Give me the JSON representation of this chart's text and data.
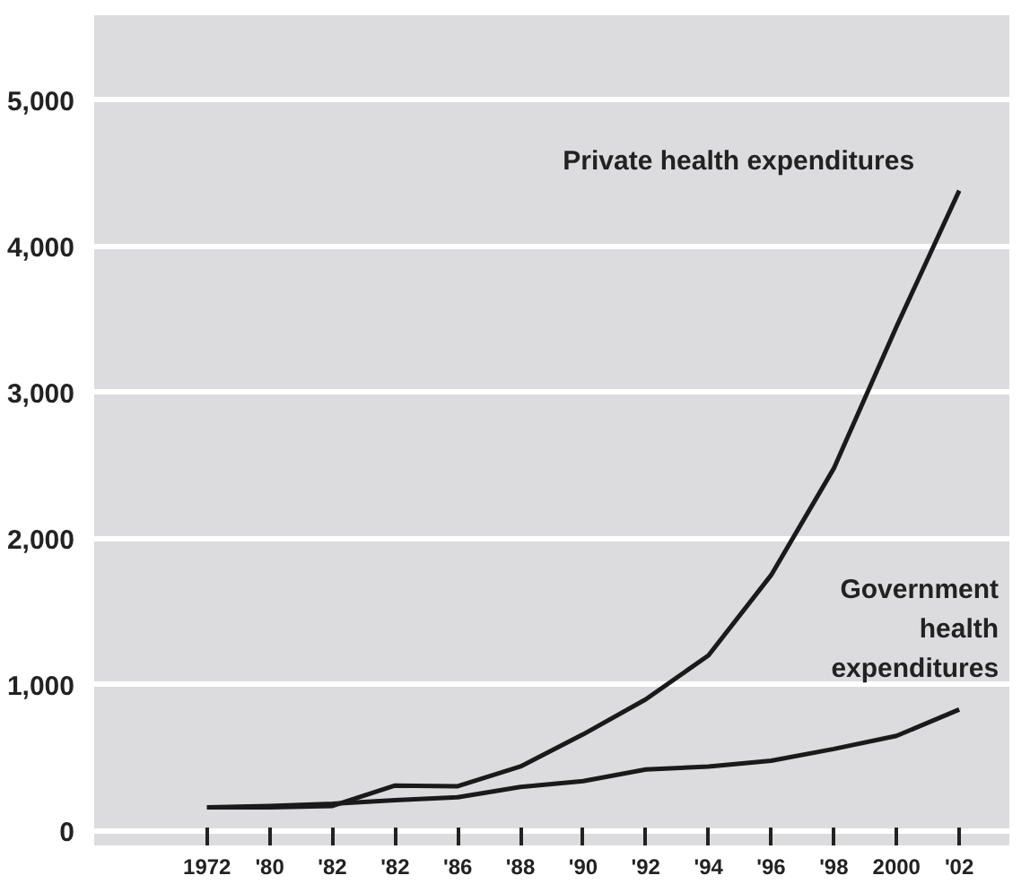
{
  "chart_data": {
    "type": "line",
    "categories": [
      "1972",
      "'80",
      "'82",
      "'82",
      "'86",
      "'88",
      "'90",
      "'92",
      "'94",
      "'96",
      "'98",
      "2000",
      "'02"
    ],
    "series": [
      {
        "name": "Private health expenditures",
        "color": "#1a1a1a",
        "values": [
          160,
          160,
          170,
          310,
          305,
          440,
          660,
          900,
          1200,
          1750,
          2480,
          3450,
          4380
        ]
      },
      {
        "name": "Government health expenditures",
        "color": "#1a1a1a",
        "values": [
          160,
          170,
          185,
          210,
          230,
          300,
          340,
          420,
          440,
          480,
          560,
          650,
          830
        ]
      }
    ],
    "ylim": [
      -100,
      5580
    ],
    "yticks": [
      {
        "value": 0,
        "label": "0"
      },
      {
        "value": 1000,
        "label": "1,000"
      },
      {
        "value": 2000,
        "label": "2,000"
      },
      {
        "value": 3000,
        "label": "3,000"
      },
      {
        "value": 4000,
        "label": "4,000"
      },
      {
        "value": 5000,
        "label": "5,000"
      }
    ],
    "grid": "y",
    "legend": false,
    "marker": "none",
    "line_style": "solid"
  }
}
